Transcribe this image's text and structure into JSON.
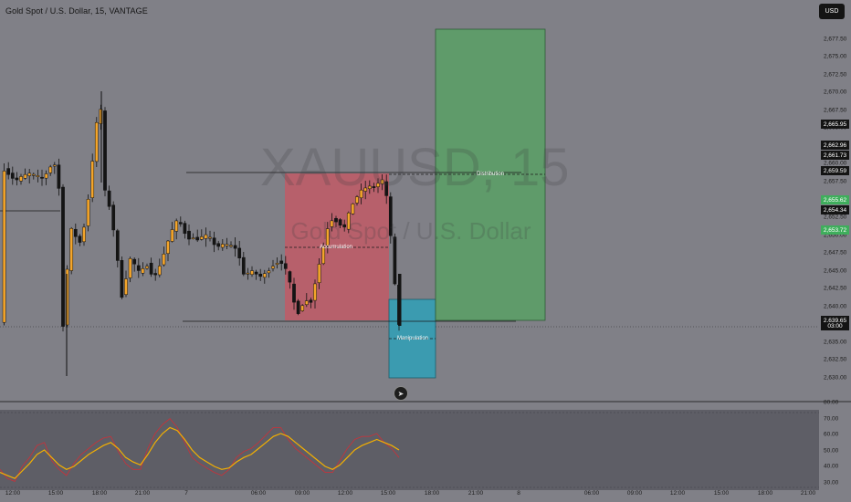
{
  "header": {
    "title": "Gold Spot / U.S. Dollar, 15, VANTAGE",
    "currency_button": "USD"
  },
  "watermark": {
    "symbol": "XAUUSD, 15",
    "description": "Gold Spot / U.S. Dollar"
  },
  "price_axis": {
    "ticks": [
      "2,677.50",
      "2,675.00",
      "2,672.50",
      "2,670.00",
      "2,667.50",
      "2,665.00",
      "2,662.50",
      "2,660.00",
      "2,657.50",
      "2,655.00",
      "2,652.50",
      "2,650.00",
      "2,647.50",
      "2,645.00",
      "2,642.50",
      "2,640.00",
      "2,637.50",
      "2,635.00",
      "2,632.50",
      "2,630.00"
    ],
    "tags": [
      {
        "label": "2,665.95",
        "color": "#141414"
      },
      {
        "label": "2,662.96",
        "color": "#141414"
      },
      {
        "label": "2,661.73",
        "color": "#141414"
      },
      {
        "label": "2,659.59",
        "color": "#141414"
      },
      {
        "label": "2,655.62",
        "color": "#3fae5c"
      },
      {
        "label": "2,654.34",
        "color": "#141414"
      },
      {
        "label": "2,653.72",
        "color": "#3fae5c"
      },
      {
        "label": "2,639.65",
        "color": "#141414"
      }
    ],
    "countdown": "03:00"
  },
  "oscillator_axis": {
    "ticks": [
      "80.00",
      "70.00",
      "60.00",
      "50.00",
      "40.00",
      "30.00"
    ]
  },
  "time_axis": {
    "ticks": [
      "12:00",
      "15:00",
      "18:00",
      "21:00",
      "7",
      "06:00",
      "09:00",
      "12:00",
      "15:00",
      "18:00",
      "21:00",
      "8",
      "06:00",
      "09:00",
      "12:00",
      "15:00",
      "18:00",
      "21:00"
    ]
  },
  "zones": {
    "accumulation": {
      "label": "Accumulation",
      "color": "#c15a66"
    },
    "manipulation": {
      "label": "Manipulation",
      "color": "#3b9bb0"
    },
    "distribution": {
      "label": "Distribution",
      "color": "#5f9b6a"
    }
  },
  "colors": {
    "background": "#808087",
    "candle_up": "#f4a52a",
    "candle_down": "#141414",
    "stoch_k": "#f4b000",
    "stoch_d": "#c3343c"
  },
  "icons": {
    "event": "rocket-icon"
  }
}
